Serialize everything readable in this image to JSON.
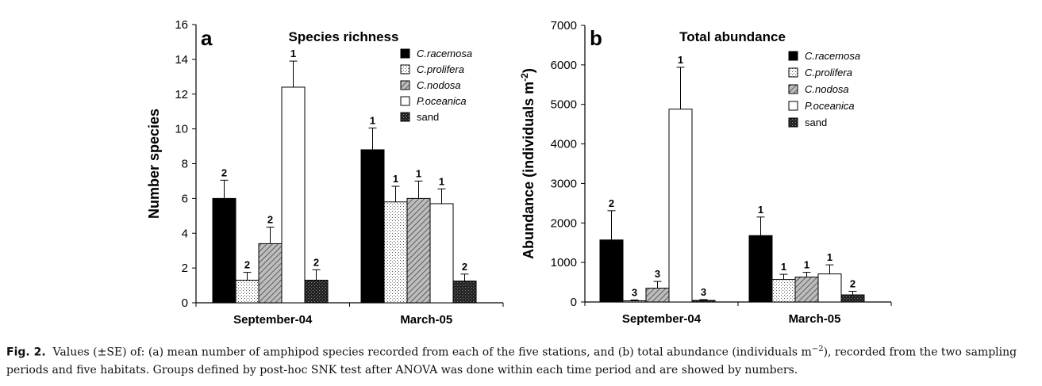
{
  "chart_data": [
    {
      "type": "bar",
      "panel_label": "a",
      "title": "Species richness",
      "ylabel": "Number species",
      "ylim": [
        0,
        16
      ],
      "yticks": [
        "0",
        "2",
        "4",
        "6",
        "8",
        "10",
        "12",
        "14",
        "16"
      ],
      "categories": [
        "September-04",
        "March-05"
      ],
      "series": [
        {
          "name": "C.racemosa",
          "values": [
            6.0,
            8.8
          ],
          "se": [
            1.05,
            1.25
          ],
          "groups": [
            "2",
            "1"
          ]
        },
        {
          "name": "C.prolifera",
          "values": [
            1.3,
            5.8
          ],
          "se": [
            0.45,
            0.9
          ],
          "groups": [
            "2",
            "1"
          ]
        },
        {
          "name": "C.nodosa",
          "values": [
            3.4,
            6.0
          ],
          "se": [
            0.95,
            1.0
          ],
          "groups": [
            "2",
            "1"
          ]
        },
        {
          "name": "P.oceanica",
          "values": [
            12.4,
            5.7
          ],
          "se": [
            1.5,
            0.85
          ],
          "groups": [
            "1",
            "1"
          ]
        },
        {
          "name": "sand",
          "values": [
            1.3,
            1.25
          ],
          "se": [
            0.6,
            0.4
          ],
          "groups": [
            "2",
            "2"
          ]
        }
      ],
      "legend_position": "top-right",
      "grid": false
    },
    {
      "type": "bar",
      "panel_label": "b",
      "title": "Total abundance",
      "ylabel": "Abundance (individuals m",
      "ylabel_sup": "-2",
      "ylabel_close": ")",
      "ylim": [
        0,
        7000
      ],
      "yticks": [
        "0",
        "1000",
        "2000",
        "3000",
        "4000",
        "5000",
        "6000",
        "7000"
      ],
      "categories": [
        "September-04",
        "March-05"
      ],
      "series": [
        {
          "name": "C.racemosa",
          "values": [
            1570,
            1680
          ],
          "se": [
            740,
            470
          ],
          "groups": [
            "2",
            "1"
          ]
        },
        {
          "name": "C.prolifera",
          "values": [
            30,
            570
          ],
          "se": [
            20,
            130
          ],
          "groups": [
            "3",
            "1"
          ]
        },
        {
          "name": "C.nodosa",
          "values": [
            350,
            630
          ],
          "se": [
            170,
            120
          ],
          "groups": [
            "3",
            "1"
          ]
        },
        {
          "name": "P.oceanica",
          "values": [
            4880,
            710
          ],
          "se": [
            1060,
            230
          ],
          "groups": [
            "1",
            "1"
          ]
        },
        {
          "name": "sand",
          "values": [
            40,
            180
          ],
          "se": [
            20,
            90
          ],
          "groups": [
            "3",
            "2"
          ]
        }
      ],
      "legend_position": "top-right",
      "grid": false
    }
  ],
  "caption": {
    "label": "Fig. 2.",
    "text_part1": "Values (±SE) of: (a) mean number of amphipod species recorded from each of the five stations, and (b) total abundance (individuals m",
    "sup": "−2",
    "text_part2": "), recorded from the two sampling periods and five habitats. Groups defined by post-hoc SNK test after ANOVA was done within each time period and are showed by numbers."
  }
}
